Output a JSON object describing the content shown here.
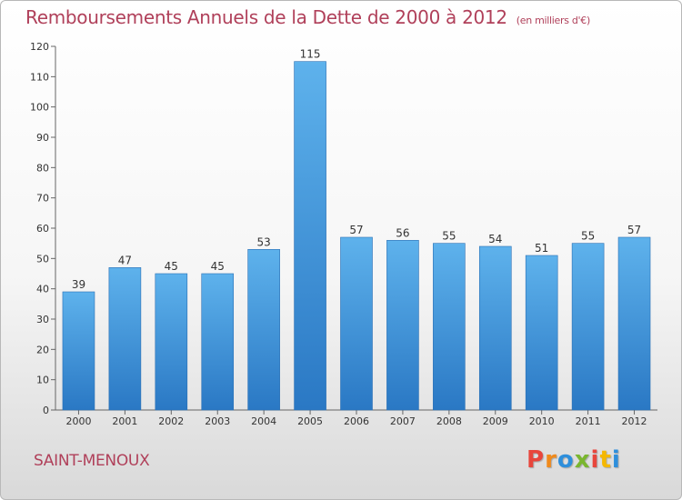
{
  "chart_data": {
    "type": "bar",
    "title": "Remboursements Annuels de la Dette de 2000 à 2012",
    "subtitle": "(en milliers d'€)",
    "categories": [
      "2000",
      "2001",
      "2002",
      "2003",
      "2004",
      "2005",
      "2006",
      "2007",
      "2008",
      "2009",
      "2010",
      "2011",
      "2012"
    ],
    "values": [
      39,
      47,
      45,
      45,
      53,
      115,
      57,
      56,
      55,
      54,
      51,
      55,
      57
    ],
    "ylim": [
      0,
      120
    ],
    "yticks": [
      0,
      10,
      20,
      30,
      40,
      50,
      60,
      70,
      80,
      90,
      100,
      110,
      120
    ],
    "grid": false,
    "legend": "none",
    "bar_color": "#4a9de0"
  },
  "footer": {
    "commune": "SAINT-MENOUX",
    "brand_letters": [
      "P",
      "r",
      "o",
      "x",
      "i",
      "t",
      "i"
    ],
    "brand_colors": [
      "#e8463c",
      "#f08a1c",
      "#2e8fdc",
      "#7ab62f",
      "#e8463c",
      "#f5b800",
      "#2e8fdc"
    ]
  }
}
